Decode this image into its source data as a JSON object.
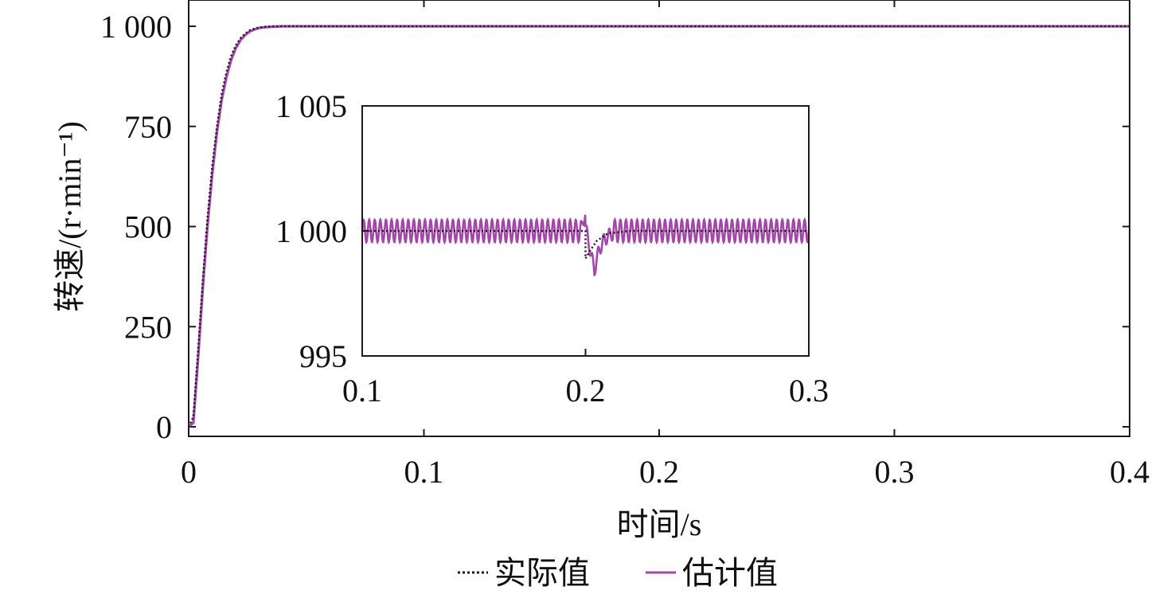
{
  "chart_data": [
    {
      "type": "line",
      "panel": "main",
      "xlabel": "时间/s",
      "ylabel": "转速/(r·min⁻¹)",
      "xlim": [
        0,
        0.4
      ],
      "ylim": [
        0,
        1000
      ],
      "x_ticks": [
        0,
        0.1,
        0.2,
        0.3,
        0.4
      ],
      "x_tick_labels": [
        "0",
        "0.1",
        "0.2",
        "0.3",
        "0.4"
      ],
      "y_ticks": [
        0,
        250,
        500,
        750,
        1000
      ],
      "y_tick_labels": [
        "0",
        "250",
        "500",
        "750",
        "1 000"
      ],
      "grid": false,
      "legend_position": "bottom-center",
      "series": [
        {
          "name": "实际值",
          "style": "dotted",
          "color": "#1a1a1a",
          "x": [
            0,
            0.002,
            0.004,
            0.006,
            0.008,
            0.01,
            0.012,
            0.014,
            0.016,
            0.018,
            0.02,
            0.022,
            0.024,
            0.026,
            0.028,
            0.03,
            0.033,
            0.036,
            0.04,
            0.045,
            0.05,
            0.06,
            0.08,
            0.1,
            0.15,
            0.2,
            0.25,
            0.3,
            0.35,
            0.4
          ],
          "values": [
            0,
            25,
            190,
            365,
            520,
            650,
            750,
            830,
            885,
            925,
            952,
            970,
            982,
            990,
            994,
            997,
            999,
            1000,
            1000,
            1000,
            1000,
            1000,
            1000,
            1000,
            1000,
            1000,
            1000,
            1000,
            1000,
            1000
          ]
        },
        {
          "name": "估计值",
          "style": "solid",
          "color": "#a347a8",
          "x": [
            0,
            0.002,
            0.004,
            0.006,
            0.008,
            0.01,
            0.012,
            0.014,
            0.016,
            0.018,
            0.02,
            0.022,
            0.024,
            0.026,
            0.028,
            0.03,
            0.033,
            0.036,
            0.04,
            0.045,
            0.05,
            0.06,
            0.08,
            0.1,
            0.15,
            0.2,
            0.25,
            0.3,
            0.35,
            0.4
          ],
          "values": [
            0,
            10,
            170,
            345,
            500,
            630,
            735,
            815,
            872,
            915,
            945,
            965,
            978,
            987,
            992,
            996,
            998,
            999,
            1000,
            1000,
            1000,
            1000,
            1000,
            1000,
            1000,
            1000,
            1000,
            1000,
            1000,
            1000
          ]
        }
      ]
    },
    {
      "type": "line",
      "panel": "inset",
      "xlim": [
        0.1,
        0.3
      ],
      "ylim": [
        995,
        1005
      ],
      "x_ticks": [
        0.1,
        0.2,
        0.3
      ],
      "x_tick_labels": [
        "0.1",
        "0.2",
        "0.3"
      ],
      "y_ticks": [
        995,
        1000,
        1005
      ],
      "y_tick_labels": [
        "995",
        "1 000",
        "1 005"
      ],
      "series": [
        {
          "name": "实际值",
          "style": "dotted",
          "color": "#1a1a1a",
          "x": [
            0.1,
            0.2,
            0.2,
            0.202,
            0.205,
            0.21,
            0.22,
            0.3
          ],
          "values": [
            1000,
            1000,
            998.9,
            999.2,
            999.6,
            999.9,
            1000,
            1000
          ]
        },
        {
          "name": "估计值",
          "style": "solid",
          "color": "#a347a8",
          "oscillation": {
            "center": 1000,
            "amplitude": 0.45,
            "period": 0.0025
          },
          "disturbance": {
            "x": 0.2,
            "peak": 1000.8,
            "trough": 998.4
          }
        }
      ]
    }
  ],
  "legend": [
    {
      "label": "实际值",
      "style": "dotted",
      "color": "#1a1a1a"
    },
    {
      "label": "估计值",
      "style": "solid",
      "color": "#a347a8"
    }
  ]
}
